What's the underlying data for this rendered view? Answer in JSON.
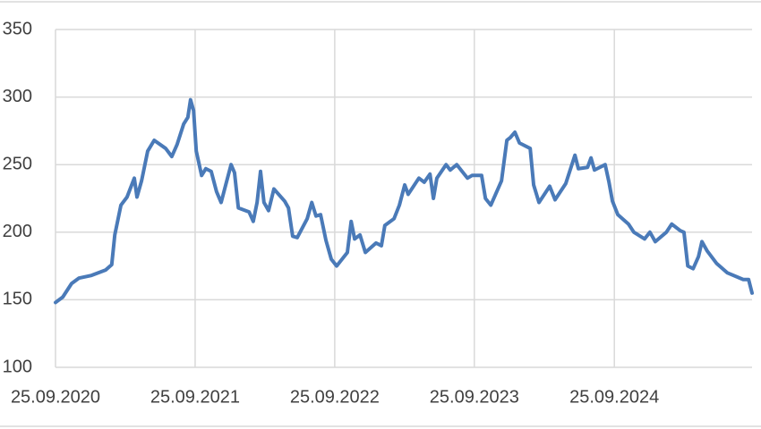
{
  "chart_data": {
    "type": "line",
    "x": [
      "25.09.2020",
      "14.10.2020",
      "06.11.2020",
      "25.11.2020",
      "28.12.2020",
      "03.02.2021",
      "19.02.2021",
      "27.02.2021",
      "15.03.2021",
      "31.03.2021",
      "19.04.2021",
      "26.04.2021",
      "08.05.2021",
      "24.05.2021",
      "10.06.2021",
      "10.07.2021",
      "26.07.2021",
      "09.08.2021",
      "26.08.2021",
      "06.09.2021",
      "13.09.2021",
      "21.09.2021",
      "28.09.2021",
      "12.10.2021",
      "23.10.2021",
      "06.11.2021",
      "20.11.2021",
      "02.12.2021",
      "14.12.2021",
      "28.12.2021",
      "06.01.2022",
      "16.01.2022",
      "13.02.2022",
      "24.02.2022",
      "06.03.2022",
      "15.03.2022",
      "24.03.2022",
      "05.04.2022",
      "19.04.2022",
      "17.05.2022",
      "27.05.2022",
      "07.06.2022",
      "19.06.2022",
      "15.07.2022",
      "27.07.2022",
      "07.08.2022",
      "19.08.2022",
      "02.09.2022",
      "16.09.2022",
      "30.09.2022",
      "28.10.2022",
      "07.11.2022",
      "16.11.2022",
      "30.11.2022",
      "14.12.2022",
      "11.01.2023",
      "25.01.2023",
      "03.02.2023",
      "27.02.2023",
      "13.03.2023",
      "27.03.2023",
      "05.04.2023",
      "03.05.2023",
      "17.05.2023",
      "01.06.2023",
      "10.06.2023",
      "19.06.2023",
      "13.07.2023",
      "24.07.2023",
      "10.08.2023",
      "07.09.2023",
      "19.09.2023",
      "14.10.2023",
      "24.10.2023",
      "07.11.2023",
      "05.12.2023",
      "19.12.2023",
      "28.12.2023",
      "09.01.2024",
      "21.01.2024",
      "18.02.2024",
      "27.02.2024",
      "12.03.2024",
      "09.04.2024",
      "23.04.2024",
      "21.05.2024",
      "14.06.2024",
      "23.06.2024",
      "17.07.2024",
      "26.07.2024",
      "04.08.2024",
      "01.09.2024",
      "11.09.2024",
      "20.09.2024",
      "04.10.2024",
      "01.11.2024",
      "15.11.2024",
      "13.12.2024",
      "27.12.2024",
      "10.01.2025",
      "08.02.2025",
      "22.02.2025",
      "17.03.2025",
      "26.03.2025",
      "05.04.2025",
      "19.04.2025",
      "03.05.2025",
      "12.05.2025",
      "26.05.2025",
      "19.06.2025",
      "17.07.2025",
      "28.08.2025",
      "11.09.2025",
      "20.09.2025"
    ],
    "series": [
      {
        "color": "#4a7ab8",
        "values": [
          148,
          152,
          162,
          166,
          168,
          172,
          176,
          198,
          220,
          226,
          240,
          226,
          238,
          260,
          268,
          262,
          256,
          265,
          280,
          285,
          298,
          290,
          260,
          242,
          247,
          245,
          230,
          222,
          235,
          250,
          244,
          218,
          215,
          208,
          222,
          245,
          222,
          216,
          232,
          223,
          218,
          197,
          196,
          210,
          222,
          212,
          213,
          194,
          180,
          175,
          185,
          208,
          195,
          198,
          185,
          192,
          190,
          205,
          210,
          220,
          235,
          228,
          240,
          237,
          243,
          225,
          240,
          250,
          246,
          250,
          240,
          242,
          242,
          225,
          220,
          238,
          268,
          270,
          274,
          266,
          262,
          235,
          222,
          234,
          224,
          236,
          257,
          247,
          248,
          255,
          246,
          250,
          237,
          223,
          213,
          206,
          200,
          195,
          200,
          193,
          200,
          206,
          201,
          200,
          175,
          173,
          182,
          193,
          186,
          177,
          170,
          165,
          165,
          155
        ]
      }
    ],
    "xlim": [
      "25.09.2020",
      "20.09.2025"
    ],
    "xticks": [
      "25.09.2020",
      "25.09.2021",
      "25.09.2022",
      "25.09.2023",
      "25.09.2024"
    ],
    "ylim": [
      100,
      350
    ],
    "yticks": [
      100,
      150,
      200,
      250,
      300,
      350
    ],
    "grid": true
  }
}
